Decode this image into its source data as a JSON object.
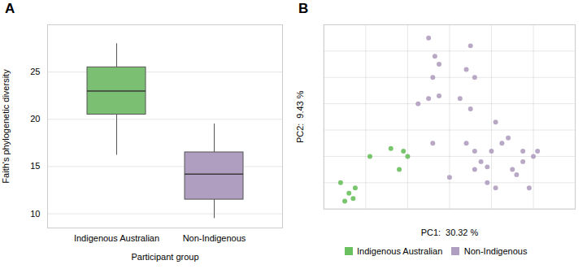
{
  "chart_data": [
    {
      "type": "box",
      "title": "A",
      "xlabel": "Participant group",
      "ylabel": "Faith's phylogenetic diversity",
      "categories": [
        "Indigenous Australian",
        "Non-Indigenous"
      ],
      "boxes": [
        {
          "median": 23.0,
          "q1": 20.5,
          "q3": 25.5,
          "whisker_low": 16.2,
          "whisker_high": 28.0
        },
        {
          "median": 14.2,
          "q1": 11.5,
          "q3": 16.5,
          "whisker_low": 9.5,
          "whisker_high": 19.5
        }
      ],
      "colors": [
        "#7BBF72",
        "#B09EC0"
      ],
      "ylim": [
        8.5,
        30
      ],
      "yticks": [
        10,
        15,
        20,
        25
      ],
      "grid": true
    },
    {
      "type": "scatter",
      "title": "B",
      "xlabel": "PC1:  30.32 %",
      "ylabel": "PC2:  9.43 %",
      "series": [
        {
          "name": "Indigenous Australian",
          "color": "#6ABF5E",
          "x": [
            -0.52,
            -0.48,
            -0.45,
            -0.5,
            -0.46,
            -0.38,
            -0.28,
            -0.22,
            -0.2,
            -0.24
          ],
          "y": [
            -0.2,
            -0.24,
            -0.22,
            -0.27,
            -0.26,
            -0.1,
            -0.07,
            -0.08,
            -0.1,
            -0.15
          ]
        },
        {
          "name": "Non-Indigenous",
          "color": "#B09EC0",
          "x": [
            -0.1,
            -0.07,
            -0.05,
            -0.08,
            0.1,
            0.08,
            0.12,
            -0.15,
            -0.1,
            -0.05,
            0.05,
            0.1,
            -0.08,
            0.0,
            0.08,
            0.12,
            0.15,
            0.2,
            0.25,
            0.28,
            0.22,
            0.3,
            0.35,
            0.32,
            0.38,
            0.4,
            0.42,
            0.35,
            0.18,
            0.12,
            0.18,
            0.22
          ],
          "y": [
            0.35,
            0.28,
            0.25,
            0.2,
            0.32,
            0.23,
            0.2,
            0.1,
            0.12,
            0.13,
            0.12,
            0.08,
            -0.05,
            -0.18,
            -0.05,
            -0.08,
            -0.12,
            -0.08,
            -0.05,
            -0.03,
            0.03,
            -0.15,
            -0.12,
            -0.17,
            -0.22,
            -0.1,
            -0.08,
            -0.08,
            -0.14,
            -0.15,
            -0.2,
            -0.22
          ]
        }
      ],
      "xlim": [
        -0.6,
        0.6
      ],
      "xticks": [
        -0.6,
        -0.4,
        -0.2,
        0,
        0.2,
        0.4,
        0.6
      ],
      "ylim": [
        -0.3,
        0.4
      ],
      "yticks": [
        -0.3,
        -0.2,
        -0.1,
        0,
        0.1,
        0.2,
        0.3,
        0.4
      ],
      "grid": true,
      "tick_labels": false,
      "legend": "bottom"
    }
  ]
}
